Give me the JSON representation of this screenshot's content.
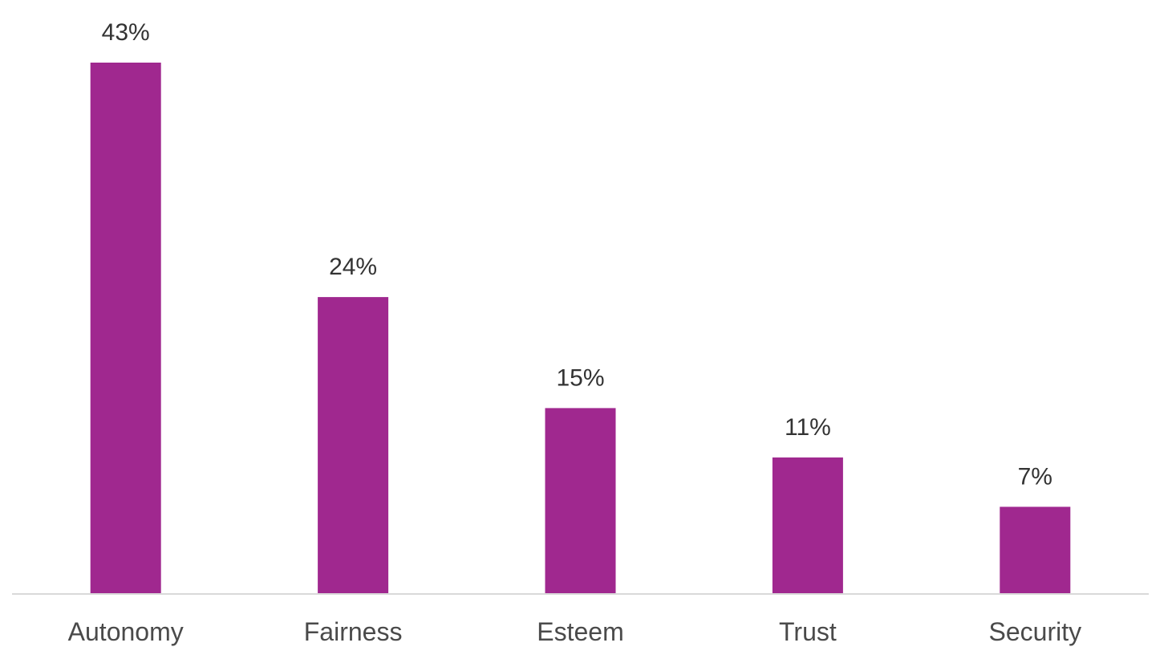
{
  "chart_data": {
    "type": "bar",
    "categories": [
      "Autonomy",
      "Fairness",
      "Esteem",
      "Trust",
      "Security"
    ],
    "values": [
      43,
      24,
      15,
      11,
      7
    ],
    "value_labels": [
      "43%",
      "24%",
      "15%",
      "11%",
      "7%"
    ],
    "unit": "%",
    "title": "",
    "xlabel": "",
    "ylabel": "",
    "ylim": [
      0,
      43
    ],
    "grid": false,
    "legend": "none",
    "bar_color": "#A0288F",
    "axis_color": "#D9D9D9"
  }
}
